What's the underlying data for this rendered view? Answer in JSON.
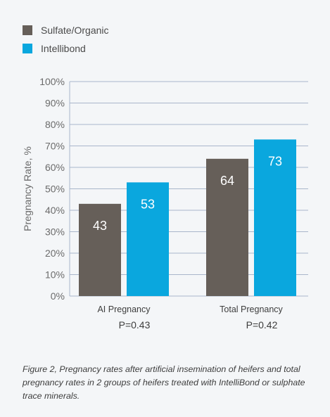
{
  "legend": {
    "items": [
      {
        "label": "Sulfate/Organic",
        "color": "#665f59"
      },
      {
        "label": "Intellibond",
        "color": "#0aa7de"
      }
    ]
  },
  "chart_data": {
    "type": "bar",
    "categories": [
      "AI Pregnancy",
      "Total Pregnancy"
    ],
    "category_notes": [
      "P=0.43",
      "P=0.42"
    ],
    "series": [
      {
        "name": "Sulfate/Organic",
        "values": [
          43,
          64
        ],
        "color": "#665f59"
      },
      {
        "name": "Intellibond",
        "values": [
          53,
          73
        ],
        "color": "#0aa7de"
      }
    ],
    "title": "",
    "xlabel": "",
    "ylabel": "Pregnancy Rate, %",
    "ylim": [
      0,
      100
    ],
    "yticks": [
      "0%",
      "10%",
      "20%",
      "30%",
      "40%",
      "50%",
      "60%",
      "70%",
      "80%",
      "90%",
      "100%"
    ],
    "grid": true,
    "legend_position": "top-left"
  },
  "caption": "Figure 2, Pregnancy rates after artificial insemination of heifers and total pregnancy rates in 2 groups of heifers treated with IntelliBond or sulphate trace minerals."
}
